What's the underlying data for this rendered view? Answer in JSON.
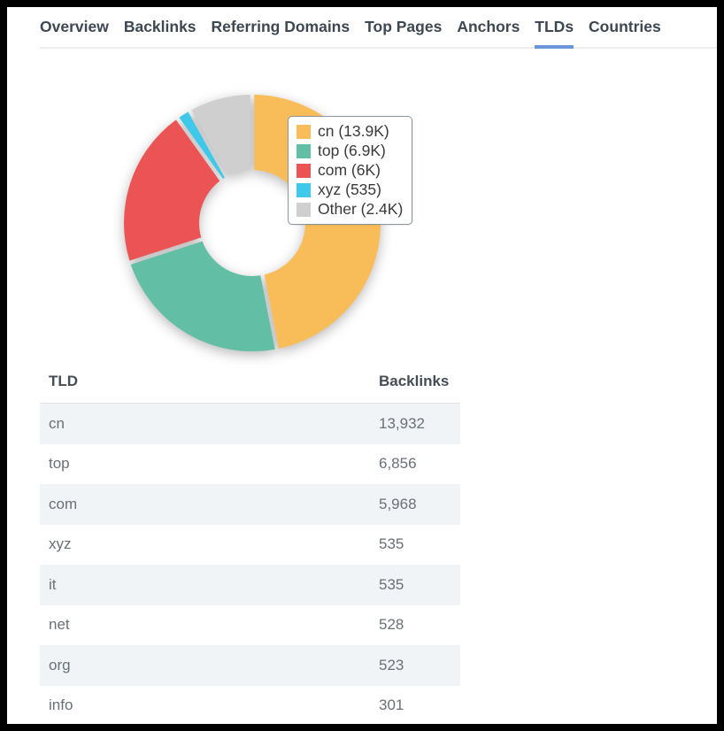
{
  "tabs": {
    "items": [
      {
        "label": "Overview"
      },
      {
        "label": "Backlinks"
      },
      {
        "label": "Referring Domains"
      },
      {
        "label": "Top Pages"
      },
      {
        "label": "Anchors"
      },
      {
        "label": "TLDs"
      },
      {
        "label": "Countries"
      }
    ],
    "active_label": "TLDs"
  },
  "chart_data": {
    "type": "pie",
    "subtype": "donut",
    "title": "",
    "legend_position": "overlay-right",
    "inner_radius_ratio": 0.41,
    "segments": [
      {
        "label": "cn",
        "legend_text": "cn (13.9K)",
        "value": 13932,
        "color": "#F8BC58"
      },
      {
        "label": "top",
        "legend_text": "top (6.9K)",
        "value": 6856,
        "color": "#62BFA5"
      },
      {
        "label": "com",
        "legend_text": "com (6K)",
        "value": 5968,
        "color": "#EC5355"
      },
      {
        "label": "xyz",
        "legend_text": "xyz (535)",
        "value": 535,
        "color": "#3EC8E9"
      },
      {
        "label": "Other",
        "legend_text": "Other (2.4K)",
        "value": 2400,
        "color": "#CFCFCF"
      }
    ]
  },
  "table": {
    "columns": [
      "TLD",
      "Backlinks"
    ],
    "rows": [
      {
        "tld": "cn",
        "backlinks": "13,932"
      },
      {
        "tld": "top",
        "backlinks": "6,856"
      },
      {
        "tld": "com",
        "backlinks": "5,968"
      },
      {
        "tld": "xyz",
        "backlinks": "535"
      },
      {
        "tld": "it",
        "backlinks": "535"
      },
      {
        "tld": "net",
        "backlinks": "528"
      },
      {
        "tld": "org",
        "backlinks": "523"
      },
      {
        "tld": "info",
        "backlinks": "301"
      }
    ]
  },
  "colors": {
    "active_tab_underline": "#6B95DB",
    "tab_text": "#3D4852",
    "tab_bar_line": "#ECECEC",
    "row_stripe": "#F0F4F7",
    "header_text": "#454D54",
    "cell_text": "#6A7077",
    "legend_border": "#8E979E"
  }
}
